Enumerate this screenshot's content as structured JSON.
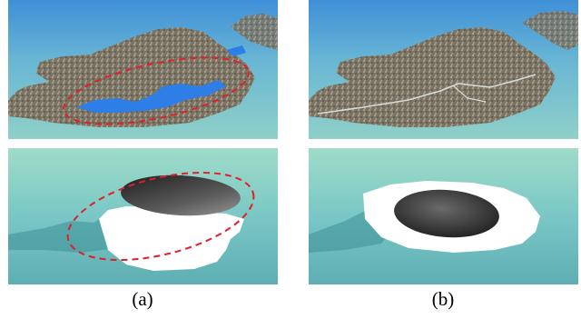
{
  "figure": {
    "panels": [
      {
        "id": "a-top",
        "description": "terrain-with-water-artifact"
      },
      {
        "id": "b-top",
        "description": "terrain-corrected"
      },
      {
        "id": "a-bottom",
        "description": "crater-artifact"
      },
      {
        "id": "b-bottom",
        "description": "crater-corrected"
      }
    ],
    "captions": {
      "a": "(a)",
      "b": "(b)"
    },
    "annotation": {
      "shape": "dashed-ellipse",
      "color": "#e0202a"
    },
    "colors": {
      "water": "#7ec6c9",
      "lake": "#2e7ee8",
      "terrain": "#7c7566",
      "crater_dark": "#3a3a3a",
      "snow": "#ffffff"
    }
  }
}
